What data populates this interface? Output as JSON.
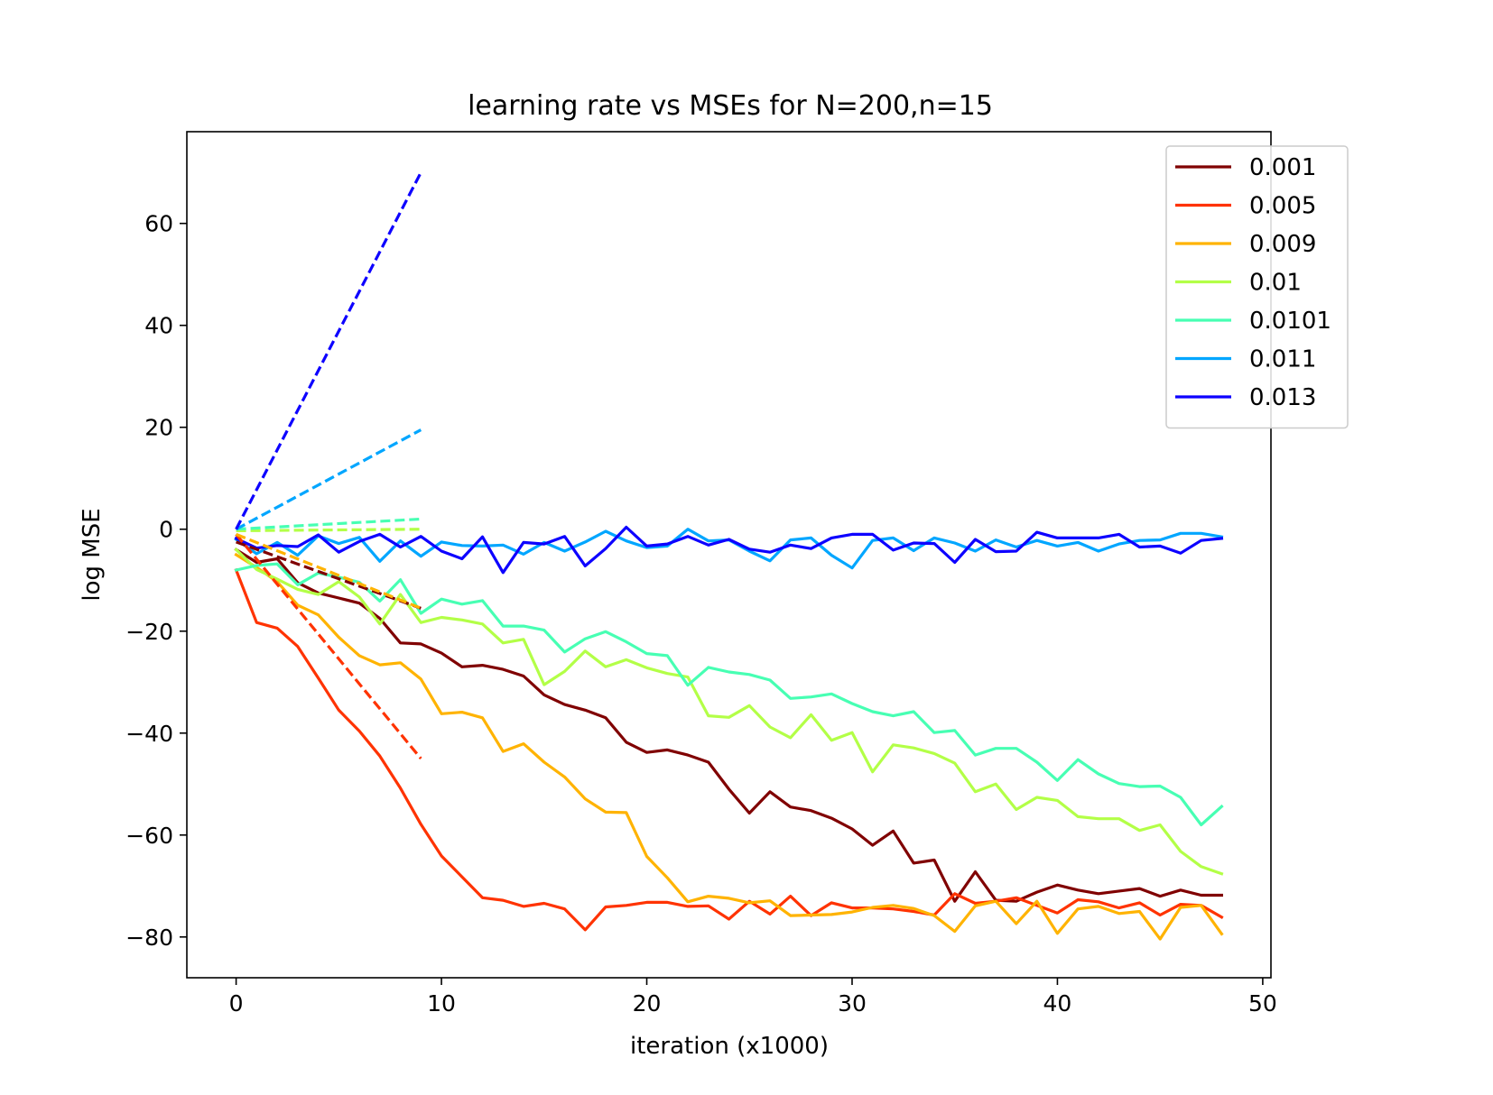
{
  "chart_data": {
    "type": "line",
    "title": "learning rate vs MSEs for N=200,n=15",
    "xlabel": "iteration (x1000)",
    "ylabel": "log MSE",
    "xlim": [
      -2.4,
      50.4
    ],
    "ylim": [
      -88,
      78
    ],
    "xticks": [
      0,
      10,
      20,
      30,
      40,
      50
    ],
    "yticks": [
      -80,
      -60,
      -40,
      -20,
      0,
      20,
      40,
      60
    ],
    "xtick_labels": [
      "0",
      "10",
      "20",
      "30",
      "40",
      "50"
    ],
    "ytick_labels": [
      "−80",
      "−60",
      "−40",
      "−20",
      "0",
      "20",
      "40",
      "60"
    ],
    "grid": false,
    "legend_position": "top-right",
    "x": [
      0,
      1,
      2,
      3,
      4,
      5,
      6,
      7,
      8,
      9,
      10,
      11,
      12,
      13,
      14,
      15,
      16,
      17,
      18,
      19,
      20,
      21,
      22,
      23,
      24,
      25,
      26,
      27,
      28,
      29,
      30,
      31,
      32,
      33,
      34,
      35,
      36,
      37,
      38,
      39,
      40,
      41,
      42,
      43,
      44,
      45,
      46,
      47,
      48
    ],
    "series": [
      {
        "name": "0.001",
        "color": "#800000",
        "values": [
          -4,
          -6.5,
          -5.8,
          -10.5,
          -12.5,
          -13.5,
          -14.5,
          -17.5,
          -22.3,
          -22.5,
          -24.3,
          -27,
          -26.7,
          -27.5,
          -28.8,
          -32.5,
          -34.4,
          -35.5,
          -37,
          -41.8,
          -43.8,
          -43.3,
          -44.3,
          -45.7,
          -51,
          -55.7,
          -51.5,
          -54.5,
          -55.2,
          -56.7,
          -58.8,
          -62,
          -59.2,
          -65.5,
          -64.9,
          -73,
          -67.2,
          -72.8,
          -73,
          -71.2,
          -69.8,
          -70.8,
          -71.5,
          -71,
          -70.5,
          -72,
          -70.8,
          -71.8,
          -71.8
        ]
      },
      {
        "name": "0.005",
        "color": "#ff3300",
        "values": [
          -8,
          -18.3,
          -19.4,
          -23,
          -29.2,
          -35.5,
          -39.6,
          -44.5,
          -50.8,
          -57.9,
          -64.1,
          -68.2,
          -72.3,
          -72.8,
          -74,
          -73.4,
          -74.5,
          -78.6,
          -74.1,
          -73.8,
          -73.2,
          -73.2,
          -74,
          -73.9,
          -76.5,
          -73,
          -75.5,
          -72,
          -75.8,
          -73.3,
          -74.3,
          -74.3,
          -74.5,
          -75,
          -75.7,
          -71.5,
          -73.4,
          -73,
          -72.3,
          -73.8,
          -75.3,
          -72.7,
          -73.1,
          -74.3,
          -73.3,
          -75.7,
          -73.6,
          -73.8,
          -76.1
        ]
      },
      {
        "name": "0.009",
        "color": "#ffb300",
        "values": [
          -5,
          -7.5,
          -10.3,
          -14.9,
          -16.8,
          -21.2,
          -24.8,
          -26.6,
          -26.2,
          -29.4,
          -36.2,
          -35.9,
          -37,
          -43.6,
          -42.1,
          -45.7,
          -48.6,
          -52.9,
          -55.5,
          -55.6,
          -64.2,
          -68.4,
          -73.1,
          -72,
          -72.4,
          -73.3,
          -72.9,
          -75.8,
          -75.7,
          -75.6,
          -75.1,
          -74.2,
          -73.8,
          -74.4,
          -75.8,
          -78.9,
          -73.9,
          -73,
          -77.4,
          -73,
          -79.3,
          -74.5,
          -74,
          -75.4,
          -75,
          -80.4,
          -74.2,
          -73.8,
          -79.4
        ]
      },
      {
        "name": "0.01",
        "color": "#b3ff47",
        "values": [
          -4,
          -7.9,
          -9.8,
          -11.8,
          -12.8,
          -10.3,
          -13.3,
          -18.6,
          -12.8,
          -18.3,
          -17.3,
          -17.8,
          -18.6,
          -22.3,
          -21.6,
          -30.5,
          -27.9,
          -23.9,
          -27,
          -25.6,
          -27.2,
          -28.3,
          -29,
          -36.6,
          -36.9,
          -34.6,
          -38.8,
          -40.9,
          -36.4,
          -41.4,
          -39.9,
          -47.6,
          -42.3,
          -42.9,
          -44,
          -45.9,
          -51.5,
          -50,
          -55,
          -52.6,
          -53.2,
          -56.4,
          -56.8,
          -56.8,
          -59.1,
          -58,
          -63.2,
          -66.2,
          -67.6
        ]
      },
      {
        "name": "0.0101",
        "color": "#47ffb3",
        "values": [
          -8,
          -7.1,
          -6.8,
          -10.9,
          -8.6,
          -9.4,
          -10.4,
          -14.1,
          -9.9,
          -16.5,
          -13.7,
          -14.7,
          -14,
          -19,
          -19,
          -19.8,
          -24.1,
          -21.5,
          -20.1,
          -22.1,
          -24.4,
          -24.8,
          -30.6,
          -27.1,
          -28,
          -28.5,
          -29.6,
          -33.2,
          -32.9,
          -32.3,
          -34.2,
          -35.8,
          -36.6,
          -35.8,
          -39.9,
          -39.5,
          -44.3,
          -43,
          -43,
          -45.7,
          -49.3,
          -45.2,
          -48,
          -49.9,
          -50.5,
          -50.4,
          -52.6,
          -58,
          -54.4
        ]
      },
      {
        "name": "0.011",
        "color": "#00a6ff",
        "values": [
          -2,
          -4.8,
          -2.6,
          -5.1,
          -1.3,
          -2.8,
          -1.6,
          -6.3,
          -2.3,
          -5.3,
          -2.5,
          -3.2,
          -3.3,
          -3.1,
          -4.9,
          -2.6,
          -4.3,
          -2.5,
          -0.4,
          -2.3,
          -3.6,
          -3.3,
          0,
          -2.3,
          -2.1,
          -4.3,
          -6.2,
          -2.1,
          -1.7,
          -5.1,
          -7.6,
          -2.2,
          -1.7,
          -4.2,
          -1.7,
          -2.7,
          -4.3,
          -2.1,
          -3.5,
          -2.2,
          -3.3,
          -2.6,
          -4.3,
          -2.9,
          -2.2,
          -2.1,
          -0.8,
          -0.8,
          -1.5
        ]
      },
      {
        "name": "0.013",
        "color": "#0d00ff",
        "values": [
          -1.8,
          -3.7,
          -3.2,
          -3.4,
          -1.1,
          -4.5,
          -2.4,
          -1,
          -3.5,
          -1.4,
          -4.3,
          -5.8,
          -1.5,
          -8.5,
          -2.6,
          -2.9,
          -1.4,
          -7.2,
          -3.8,
          0.4,
          -3.3,
          -2.9,
          -1.4,
          -3.1,
          -2,
          -3.9,
          -4.5,
          -3.1,
          -3.8,
          -1.7,
          -1,
          -1,
          -4.1,
          -2.7,
          -2.8,
          -6.5,
          -2,
          -4.4,
          -4.3,
          -0.6,
          -1.7,
          -1.7,
          -1.7,
          -1,
          -3.5,
          -3.3,
          -4.7,
          -2.2,
          -1.8
        ]
      }
    ],
    "trend_lines": [
      {
        "series": "0.001",
        "color": "#800000",
        "x": [
          0,
          9
        ],
        "y": [
          -2.5,
          -15.5
        ]
      },
      {
        "series": "0.005",
        "color": "#ff3300",
        "x": [
          0,
          9
        ],
        "y": [
          -1,
          -45
        ]
      },
      {
        "series": "0.009",
        "color": "#ffb300",
        "x": [
          0,
          9
        ],
        "y": [
          -1,
          -15.5
        ]
      },
      {
        "series": "0.01",
        "color": "#b3ff47",
        "x": [
          0,
          9
        ],
        "y": [
          -0.3,
          0
        ]
      },
      {
        "series": "0.0101",
        "color": "#47ffb3",
        "x": [
          0,
          9
        ],
        "y": [
          0,
          2
        ]
      },
      {
        "series": "0.011",
        "color": "#00a6ff",
        "x": [
          0,
          9
        ],
        "y": [
          0,
          19.5
        ]
      },
      {
        "series": "0.013",
        "color": "#0d00ff",
        "x": [
          0,
          9
        ],
        "y": [
          0,
          70
        ]
      }
    ]
  }
}
